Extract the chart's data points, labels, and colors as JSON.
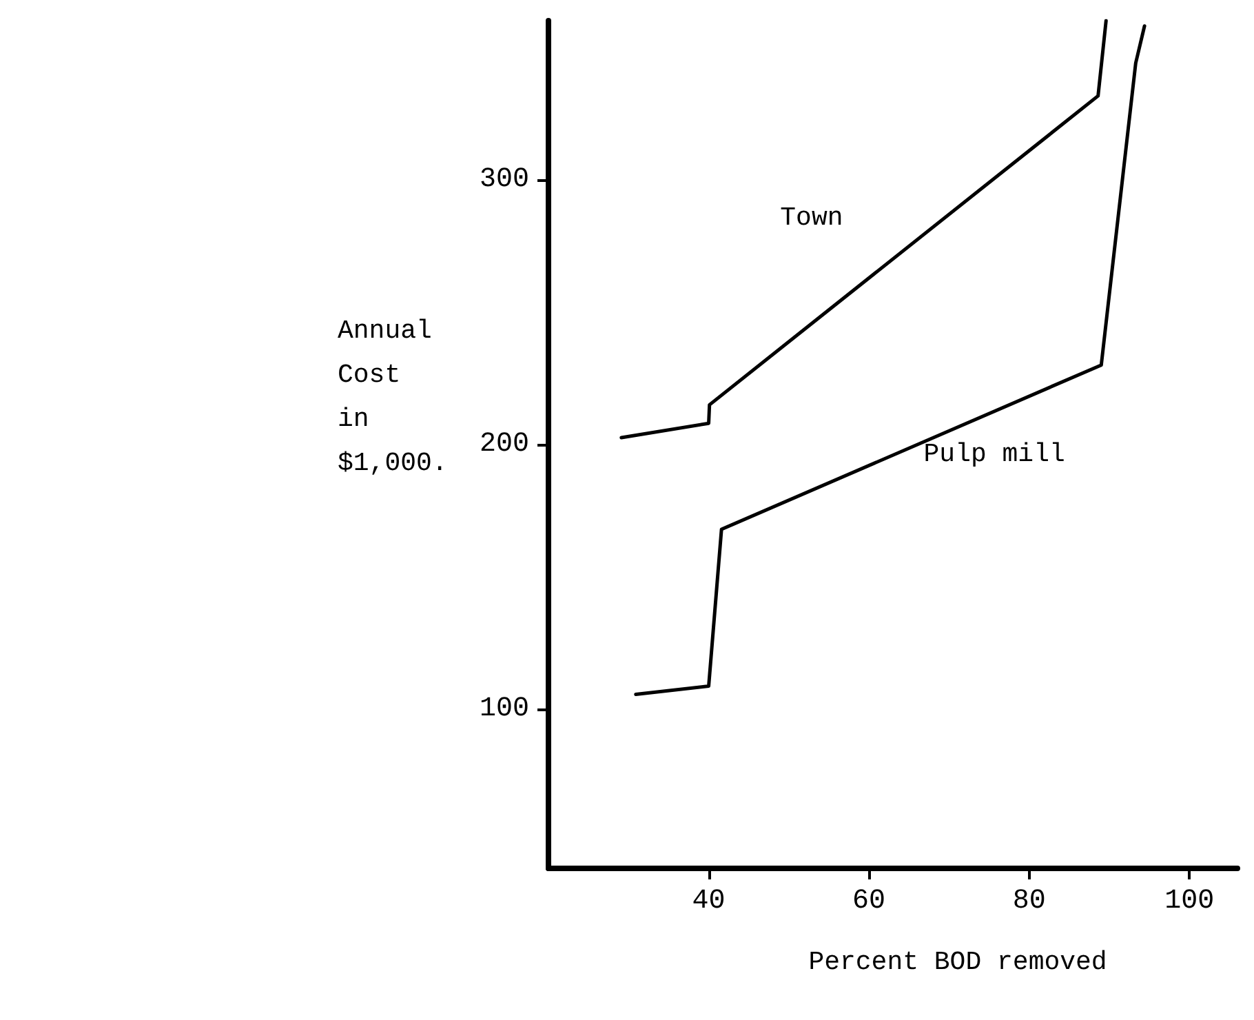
{
  "chart_data": {
    "type": "line",
    "xlabel": "Percent BOD removed",
    "ylabel": "Annual\nCost\nin\n$1,000.",
    "xlim": [
      20,
      106
    ],
    "xticks": [
      40,
      60,
      80,
      100
    ],
    "ylim": [
      40,
      360
    ],
    "yticks": [
      100,
      200,
      300
    ],
    "grid": false,
    "legend": false,
    "marker": "none",
    "line_style": "solid",
    "series": [
      {
        "name": "Town",
        "color": "#000000",
        "x": [
          29.1,
          40,
          40.1,
          88.6,
          89.6
        ],
        "values": [
          202.6,
          208,
          215,
          331.6,
          360
        ]
      },
      {
        "name": "Pulp mill",
        "color": "#000000",
        "x": [
          30.9,
          40,
          41.6,
          89,
          93.3,
          94.4
        ],
        "values": [
          105.7,
          108.8,
          168,
          230,
          344,
          358
        ]
      }
    ]
  }
}
